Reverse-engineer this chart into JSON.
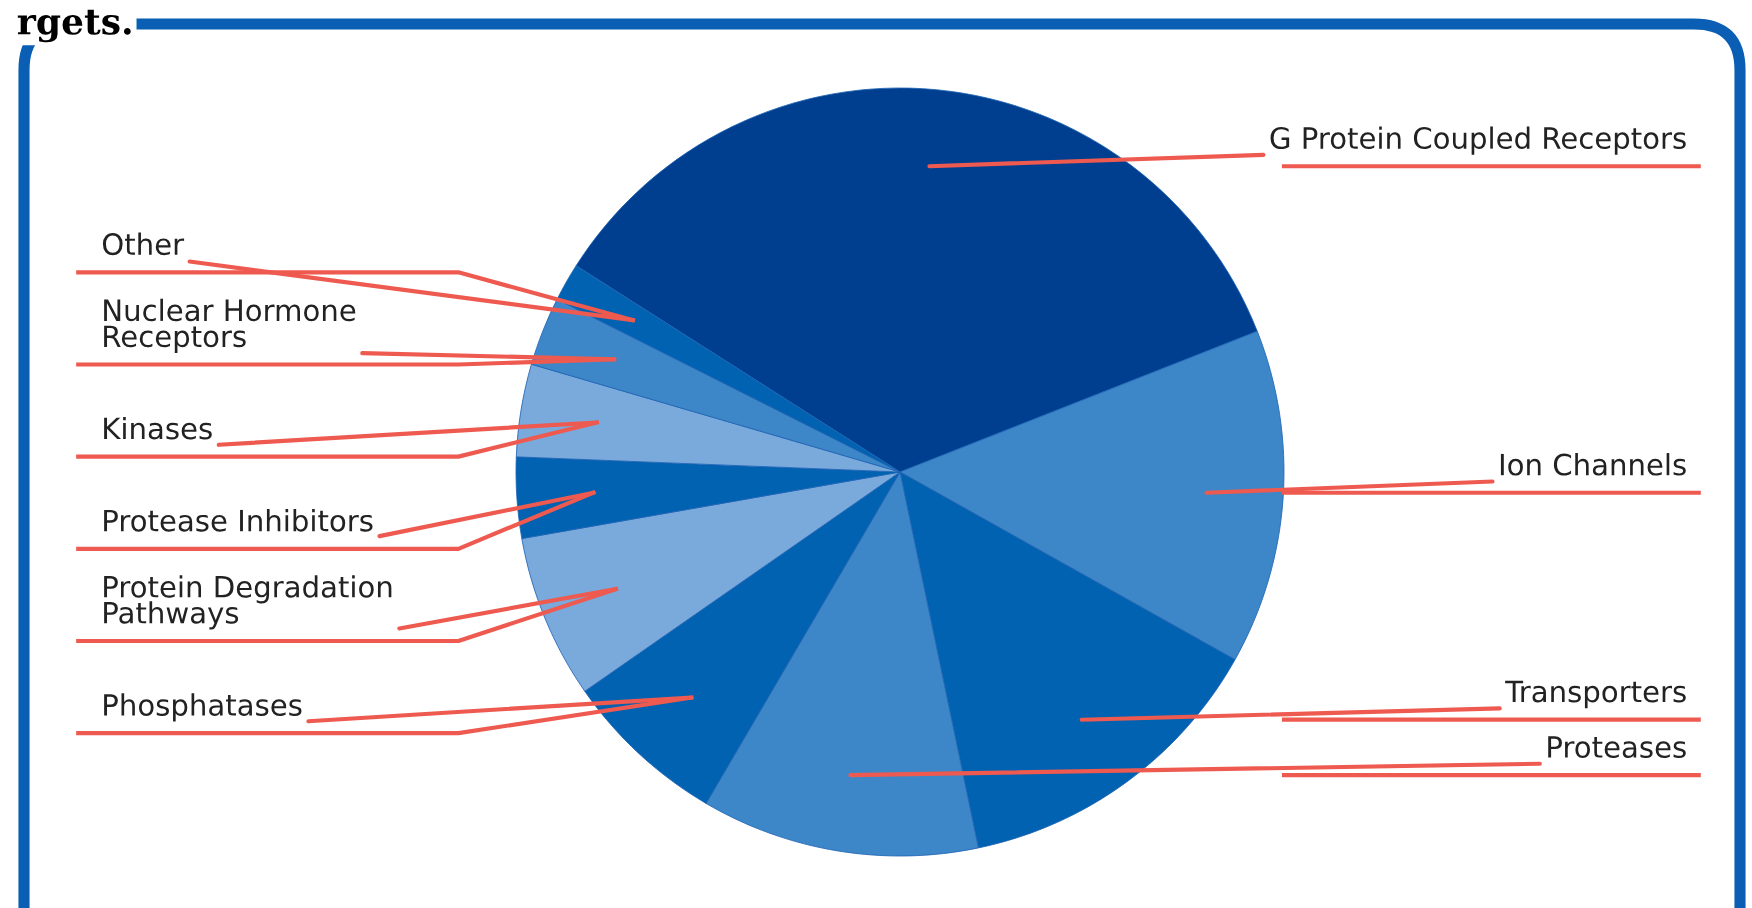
{
  "chart_data": {
    "type": "pie",
    "title": "rgets.",
    "categories": [
      "G Protein Coupled Receptors",
      "Ion Channels",
      "Transporters",
      "Proteases",
      "Phosphatases",
      "Protein Degradation\nPathways",
      "Protease Inhibitors",
      "Kinases",
      "Nuclear Hormone\nReceptors",
      "Other"
    ],
    "values": [
      35.0,
      14.1,
      13.6,
      11.7,
      6.9,
      6.9,
      3.4,
      3.9,
      2.9,
      1.6
    ],
    "colors": [
      "#003f8f",
      "#3d87c8",
      "#0062b0",
      "#3d87c8",
      "#0062b0",
      "#7aa9dc",
      "#0062b0",
      "#7aa9dc",
      "#3d87c8",
      "#0062b0"
    ],
    "legend": false
  }
}
